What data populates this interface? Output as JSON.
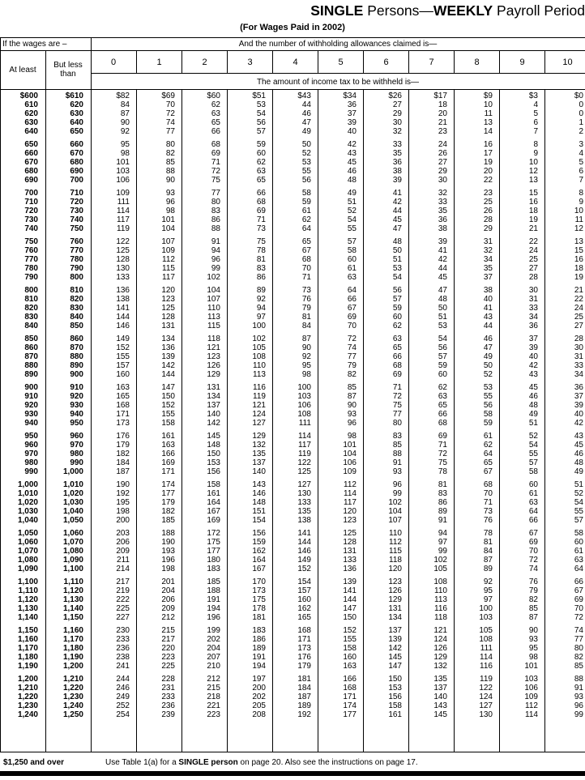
{
  "title": {
    "bold1": "SINGLE",
    "regular1": " Persons—",
    "bold2": "WEEKLY",
    "regular2": " Payroll Period"
  },
  "subtitle": "(For Wages Paid in 2002)",
  "header": {
    "wages_condition_label": "If the wages are –",
    "allowances_label": "And the number of withholding allowances claimed is—",
    "at_least_label": "At least",
    "but_less_than_label": "But less than",
    "allowance_columns": [
      "0",
      "1",
      "2",
      "3",
      "4",
      "5",
      "6",
      "7",
      "8",
      "9",
      "10"
    ],
    "amount_label": "The amount of income tax to be withheld is—"
  },
  "footer": {
    "wage_over_label": "$1,250 and over",
    "instruction_prefix": "Use Table 1(a) for a ",
    "instruction_bold": "SINGLE person",
    "instruction_suffix": " on page 20. Also see the instructions on page 17."
  },
  "table": {
    "groups": [
      [
        [
          "$600",
          "$610",
          "$82",
          "$69",
          "$60",
          "$51",
          "$43",
          "$34",
          "$26",
          "$17",
          "$9",
          "$3",
          "$0"
        ],
        [
          "610",
          "620",
          "84",
          "70",
          "62",
          "53",
          "44",
          "36",
          "27",
          "18",
          "10",
          "4",
          "0"
        ],
        [
          "620",
          "630",
          "87",
          "72",
          "63",
          "54",
          "46",
          "37",
          "29",
          "20",
          "11",
          "5",
          "0"
        ],
        [
          "630",
          "640",
          "90",
          "74",
          "65",
          "56",
          "47",
          "39",
          "30",
          "21",
          "13",
          "6",
          "1"
        ],
        [
          "640",
          "650",
          "92",
          "77",
          "66",
          "57",
          "49",
          "40",
          "32",
          "23",
          "14",
          "7",
          "2"
        ]
      ],
      [
        [
          "650",
          "660",
          "95",
          "80",
          "68",
          "59",
          "50",
          "42",
          "33",
          "24",
          "16",
          "8",
          "3"
        ],
        [
          "660",
          "670",
          "98",
          "82",
          "69",
          "60",
          "52",
          "43",
          "35",
          "26",
          "17",
          "9",
          "4"
        ],
        [
          "670",
          "680",
          "101",
          "85",
          "71",
          "62",
          "53",
          "45",
          "36",
          "27",
          "19",
          "10",
          "5"
        ],
        [
          "680",
          "690",
          "103",
          "88",
          "72",
          "63",
          "55",
          "46",
          "38",
          "29",
          "20",
          "12",
          "6"
        ],
        [
          "690",
          "700",
          "106",
          "90",
          "75",
          "65",
          "56",
          "48",
          "39",
          "30",
          "22",
          "13",
          "7"
        ]
      ],
      [
        [
          "700",
          "710",
          "109",
          "93",
          "77",
          "66",
          "58",
          "49",
          "41",
          "32",
          "23",
          "15",
          "8"
        ],
        [
          "710",
          "720",
          "111",
          "96",
          "80",
          "68",
          "59",
          "51",
          "42",
          "33",
          "25",
          "16",
          "9"
        ],
        [
          "720",
          "730",
          "114",
          "98",
          "83",
          "69",
          "61",
          "52",
          "44",
          "35",
          "26",
          "18",
          "10"
        ],
        [
          "730",
          "740",
          "117",
          "101",
          "86",
          "71",
          "62",
          "54",
          "45",
          "36",
          "28",
          "19",
          "11"
        ],
        [
          "740",
          "750",
          "119",
          "104",
          "88",
          "73",
          "64",
          "55",
          "47",
          "38",
          "29",
          "21",
          "12"
        ]
      ],
      [
        [
          "750",
          "760",
          "122",
          "107",
          "91",
          "75",
          "65",
          "57",
          "48",
          "39",
          "31",
          "22",
          "13"
        ],
        [
          "760",
          "770",
          "125",
          "109",
          "94",
          "78",
          "67",
          "58",
          "50",
          "41",
          "32",
          "24",
          "15"
        ],
        [
          "770",
          "780",
          "128",
          "112",
          "96",
          "81",
          "68",
          "60",
          "51",
          "42",
          "34",
          "25",
          "16"
        ],
        [
          "780",
          "790",
          "130",
          "115",
          "99",
          "83",
          "70",
          "61",
          "53",
          "44",
          "35",
          "27",
          "18"
        ],
        [
          "790",
          "800",
          "133",
          "117",
          "102",
          "86",
          "71",
          "63",
          "54",
          "45",
          "37",
          "28",
          "19"
        ]
      ],
      [
        [
          "800",
          "810",
          "136",
          "120",
          "104",
          "89",
          "73",
          "64",
          "56",
          "47",
          "38",
          "30",
          "21"
        ],
        [
          "810",
          "820",
          "138",
          "123",
          "107",
          "92",
          "76",
          "66",
          "57",
          "48",
          "40",
          "31",
          "22"
        ],
        [
          "820",
          "830",
          "141",
          "125",
          "110",
          "94",
          "79",
          "67",
          "59",
          "50",
          "41",
          "33",
          "24"
        ],
        [
          "830",
          "840",
          "144",
          "128",
          "113",
          "97",
          "81",
          "69",
          "60",
          "51",
          "43",
          "34",
          "25"
        ],
        [
          "840",
          "850",
          "146",
          "131",
          "115",
          "100",
          "84",
          "70",
          "62",
          "53",
          "44",
          "36",
          "27"
        ]
      ],
      [
        [
          "850",
          "860",
          "149",
          "134",
          "118",
          "102",
          "87",
          "72",
          "63",
          "54",
          "46",
          "37",
          "28"
        ],
        [
          "860",
          "870",
          "152",
          "136",
          "121",
          "105",
          "90",
          "74",
          "65",
          "56",
          "47",
          "39",
          "30"
        ],
        [
          "870",
          "880",
          "155",
          "139",
          "123",
          "108",
          "92",
          "77",
          "66",
          "57",
          "49",
          "40",
          "31"
        ],
        [
          "880",
          "890",
          "157",
          "142",
          "126",
          "110",
          "95",
          "79",
          "68",
          "59",
          "50",
          "42",
          "33"
        ],
        [
          "890",
          "900",
          "160",
          "144",
          "129",
          "113",
          "98",
          "82",
          "69",
          "60",
          "52",
          "43",
          "34"
        ]
      ],
      [
        [
          "900",
          "910",
          "163",
          "147",
          "131",
          "116",
          "100",
          "85",
          "71",
          "62",
          "53",
          "45",
          "36"
        ],
        [
          "910",
          "920",
          "165",
          "150",
          "134",
          "119",
          "103",
          "87",
          "72",
          "63",
          "55",
          "46",
          "37"
        ],
        [
          "920",
          "930",
          "168",
          "152",
          "137",
          "121",
          "106",
          "90",
          "75",
          "65",
          "56",
          "48",
          "39"
        ],
        [
          "930",
          "940",
          "171",
          "155",
          "140",
          "124",
          "108",
          "93",
          "77",
          "66",
          "58",
          "49",
          "40"
        ],
        [
          "940",
          "950",
          "173",
          "158",
          "142",
          "127",
          "111",
          "96",
          "80",
          "68",
          "59",
          "51",
          "42"
        ]
      ],
      [
        [
          "950",
          "960",
          "176",
          "161",
          "145",
          "129",
          "114",
          "98",
          "83",
          "69",
          "61",
          "52",
          "43"
        ],
        [
          "960",
          "970",
          "179",
          "163",
          "148",
          "132",
          "117",
          "101",
          "85",
          "71",
          "62",
          "54",
          "45"
        ],
        [
          "970",
          "980",
          "182",
          "166",
          "150",
          "135",
          "119",
          "104",
          "88",
          "72",
          "64",
          "55",
          "46"
        ],
        [
          "980",
          "990",
          "184",
          "169",
          "153",
          "137",
          "122",
          "106",
          "91",
          "75",
          "65",
          "57",
          "48"
        ],
        [
          "990",
          "1,000",
          "187",
          "171",
          "156",
          "140",
          "125",
          "109",
          "93",
          "78",
          "67",
          "58",
          "49"
        ]
      ],
      [
        [
          "1,000",
          "1,010",
          "190",
          "174",
          "158",
          "143",
          "127",
          "112",
          "96",
          "81",
          "68",
          "60",
          "51"
        ],
        [
          "1,010",
          "1,020",
          "192",
          "177",
          "161",
          "146",
          "130",
          "114",
          "99",
          "83",
          "70",
          "61",
          "52"
        ],
        [
          "1,020",
          "1,030",
          "195",
          "179",
          "164",
          "148",
          "133",
          "117",
          "102",
          "86",
          "71",
          "63",
          "54"
        ],
        [
          "1,030",
          "1,040",
          "198",
          "182",
          "167",
          "151",
          "135",
          "120",
          "104",
          "89",
          "73",
          "64",
          "55"
        ],
        [
          "1,040",
          "1,050",
          "200",
          "185",
          "169",
          "154",
          "138",
          "123",
          "107",
          "91",
          "76",
          "66",
          "57"
        ]
      ],
      [
        [
          "1,050",
          "1,060",
          "203",
          "188",
          "172",
          "156",
          "141",
          "125",
          "110",
          "94",
          "78",
          "67",
          "58"
        ],
        [
          "1,060",
          "1,070",
          "206",
          "190",
          "175",
          "159",
          "144",
          "128",
          "112",
          "97",
          "81",
          "69",
          "60"
        ],
        [
          "1,070",
          "1,080",
          "209",
          "193",
          "177",
          "162",
          "146",
          "131",
          "115",
          "99",
          "84",
          "70",
          "61"
        ],
        [
          "1,080",
          "1,090",
          "211",
          "196",
          "180",
          "164",
          "149",
          "133",
          "118",
          "102",
          "87",
          "72",
          "63"
        ],
        [
          "1,090",
          "1,100",
          "214",
          "198",
          "183",
          "167",
          "152",
          "136",
          "120",
          "105",
          "89",
          "74",
          "64"
        ]
      ],
      [
        [
          "1,100",
          "1,110",
          "217",
          "201",
          "185",
          "170",
          "154",
          "139",
          "123",
          "108",
          "92",
          "76",
          "66"
        ],
        [
          "1,110",
          "1,120",
          "219",
          "204",
          "188",
          "173",
          "157",
          "141",
          "126",
          "110",
          "95",
          "79",
          "67"
        ],
        [
          "1,120",
          "1,130",
          "222",
          "206",
          "191",
          "175",
          "160",
          "144",
          "129",
          "113",
          "97",
          "82",
          "69"
        ],
        [
          "1,130",
          "1,140",
          "225",
          "209",
          "194",
          "178",
          "162",
          "147",
          "131",
          "116",
          "100",
          "85",
          "70"
        ],
        [
          "1,140",
          "1,150",
          "227",
          "212",
          "196",
          "181",
          "165",
          "150",
          "134",
          "118",
          "103",
          "87",
          "72"
        ]
      ],
      [
        [
          "1,150",
          "1,160",
          "230",
          "215",
          "199",
          "183",
          "168",
          "152",
          "137",
          "121",
          "105",
          "90",
          "74"
        ],
        [
          "1,160",
          "1,170",
          "233",
          "217",
          "202",
          "186",
          "171",
          "155",
          "139",
          "124",
          "108",
          "93",
          "77"
        ],
        [
          "1,170",
          "1,180",
          "236",
          "220",
          "204",
          "189",
          "173",
          "158",
          "142",
          "126",
          "111",
          "95",
          "80"
        ],
        [
          "1,180",
          "1,190",
          "238",
          "223",
          "207",
          "191",
          "176",
          "160",
          "145",
          "129",
          "114",
          "98",
          "82"
        ],
        [
          "1,190",
          "1,200",
          "241",
          "225",
          "210",
          "194",
          "179",
          "163",
          "147",
          "132",
          "116",
          "101",
          "85"
        ]
      ],
      [
        [
          "1,200",
          "1,210",
          "244",
          "228",
          "212",
          "197",
          "181",
          "166",
          "150",
          "135",
          "119",
          "103",
          "88"
        ],
        [
          "1,210",
          "1,220",
          "246",
          "231",
          "215",
          "200",
          "184",
          "168",
          "153",
          "137",
          "122",
          "106",
          "91"
        ],
        [
          "1,220",
          "1,230",
          "249",
          "233",
          "218",
          "202",
          "187",
          "171",
          "156",
          "140",
          "124",
          "109",
          "93"
        ],
        [
          "1,230",
          "1,240",
          "252",
          "236",
          "221",
          "205",
          "189",
          "174",
          "158",
          "143",
          "127",
          "112",
          "96"
        ],
        [
          "1,240",
          "1,250",
          "254",
          "239",
          "223",
          "208",
          "192",
          "177",
          "161",
          "145",
          "130",
          "114",
          "99"
        ]
      ]
    ]
  }
}
